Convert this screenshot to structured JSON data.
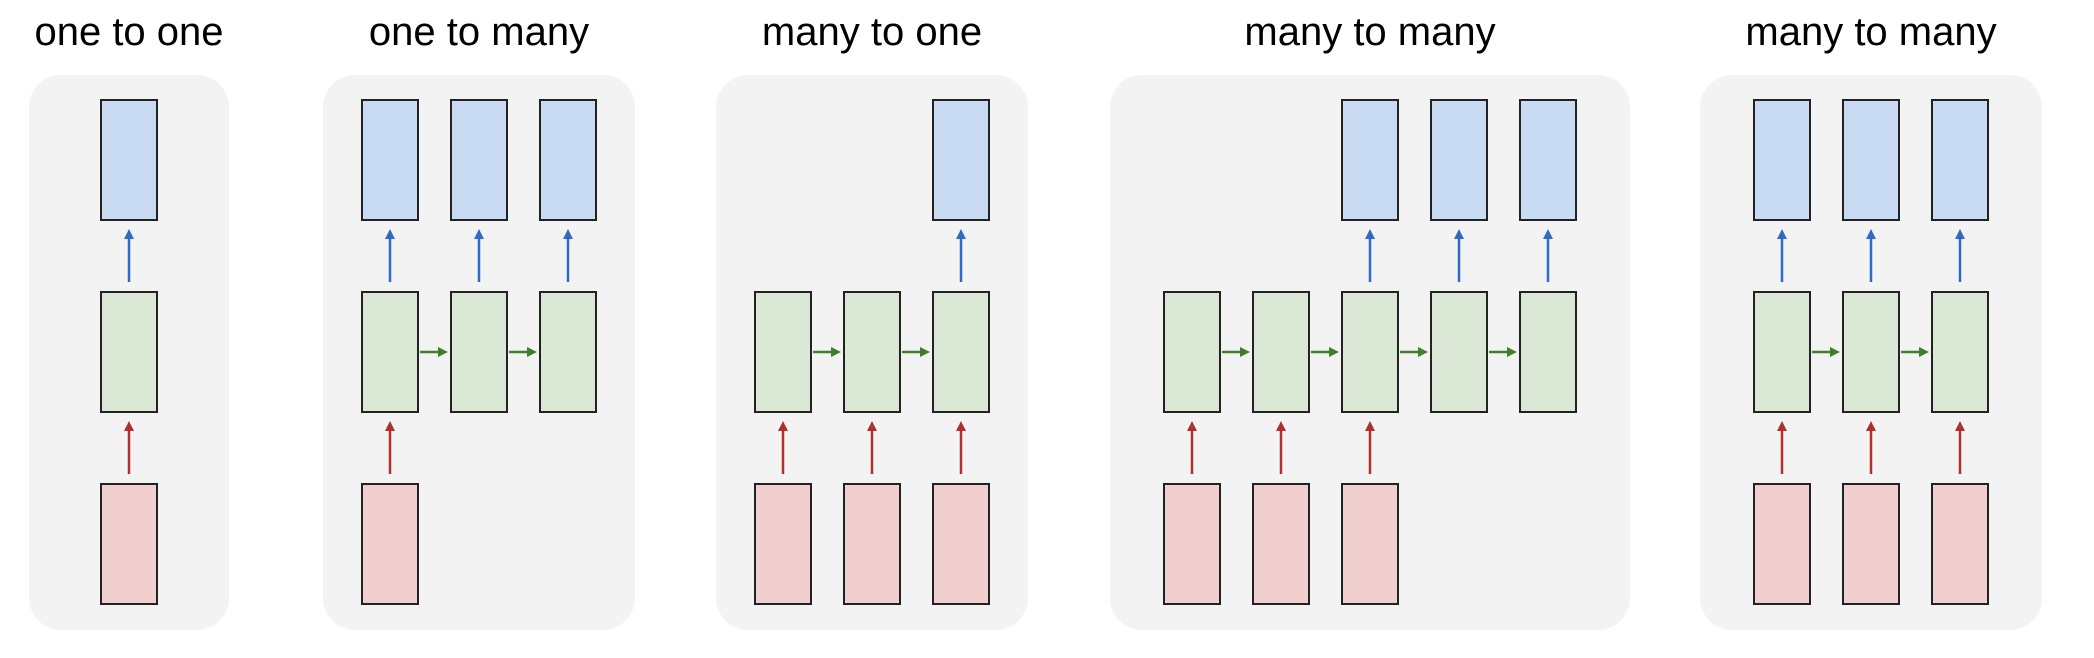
{
  "colors": {
    "panel_bg": "#f3f3f3",
    "input_fill": "#f1cfcf",
    "hidden_fill": "#dbe8d5",
    "output_fill": "#c9dbf3",
    "box_stroke": "#222222",
    "input_arrow": "#b03030",
    "recurrent_arrow": "#3f7f2a",
    "output_arrow": "#2f6bc4"
  },
  "panels": [
    {
      "title": "one to one",
      "steps": [
        {
          "input": true,
          "output": true
        }
      ]
    },
    {
      "title": "one to many",
      "steps": [
        {
          "input": true,
          "output": true
        },
        {
          "input": false,
          "output": true
        },
        {
          "input": false,
          "output": true
        }
      ]
    },
    {
      "title": "many to one",
      "steps": [
        {
          "input": true,
          "output": false
        },
        {
          "input": true,
          "output": false
        },
        {
          "input": true,
          "output": true
        }
      ]
    },
    {
      "title": "many to many",
      "steps": [
        {
          "input": true,
          "output": false
        },
        {
          "input": true,
          "output": false
        },
        {
          "input": true,
          "output": true
        },
        {
          "input": false,
          "output": true
        },
        {
          "input": false,
          "output": true
        }
      ]
    },
    {
      "title": "many to many",
      "steps": [
        {
          "input": true,
          "output": true
        },
        {
          "input": true,
          "output": true
        },
        {
          "input": true,
          "output": true
        }
      ]
    }
  ]
}
